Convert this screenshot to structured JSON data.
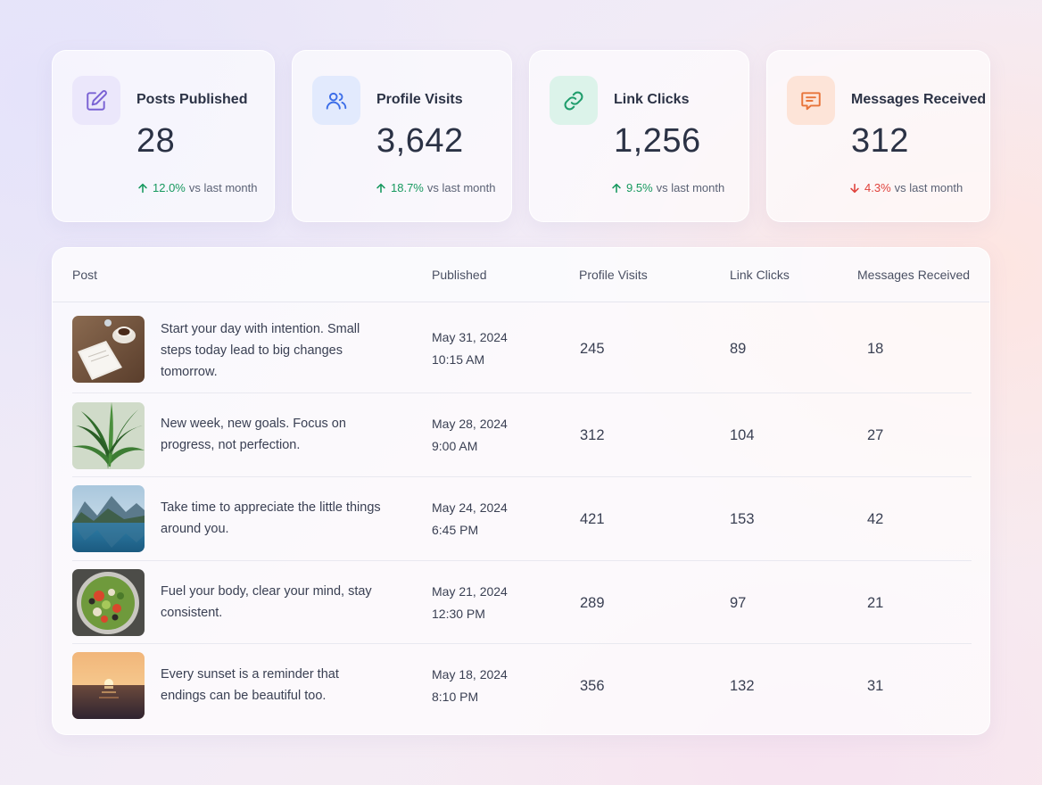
{
  "stats": [
    {
      "label": "Posts Published",
      "value": "28",
      "change": "12.0%",
      "direction": "up",
      "suffix": "vs last month",
      "icon": "edit-icon",
      "tile_color": "#ebe7fb",
      "icon_color": "#7a62d4"
    },
    {
      "label": "Profile Visits",
      "value": "3,642",
      "change": "18.7%",
      "direction": "up",
      "suffix": "vs last month",
      "icon": "users-icon",
      "tile_color": "#e2eafd",
      "icon_color": "#3c6ee8"
    },
    {
      "label": "Link Clicks",
      "value": "1,256",
      "change": "9.5%",
      "direction": "up",
      "suffix": "vs last month",
      "icon": "link-icon",
      "tile_color": "#dcf3ea",
      "icon_color": "#1f9d6c"
    },
    {
      "label": "Messages Received",
      "value": "312",
      "change": "4.3%",
      "direction": "down",
      "suffix": "vs last month",
      "icon": "message-icon",
      "tile_color": "#fde4d8",
      "icon_color": "#e8743a"
    }
  ],
  "table": {
    "headers": {
      "post": "Post",
      "published": "Published",
      "visits": "Profile Visits",
      "clicks": "Link Clicks",
      "messages": "Messages Received"
    },
    "rows": [
      {
        "text": "Start your day with intention. Small steps today lead to big changes tomorrow.",
        "date": "May 31, 2024",
        "time": "10:15 AM",
        "visits": "245",
        "clicks": "89",
        "messages": "18",
        "thumb": "coffee-notebook-image"
      },
      {
        "text": "New week, new goals. Focus on progress, not perfection.",
        "date": "May 28, 2024",
        "time": "9:00 AM",
        "visits": "312",
        "clicks": "104",
        "messages": "27",
        "thumb": "plant-leaves-image"
      },
      {
        "text": "Take time to appreciate the little things around you.",
        "date": "May 24, 2024",
        "time": "6:45 PM",
        "visits": "421",
        "clicks": "153",
        "messages": "42",
        "thumb": "mountain-lake-image"
      },
      {
        "text": "Fuel your body, clear your mind, stay consistent.",
        "date": "May 21, 2024",
        "time": "12:30 PM",
        "visits": "289",
        "clicks": "97",
        "messages": "21",
        "thumb": "salad-bowl-image"
      },
      {
        "text": "Every sunset is a reminder that endings can be beautiful too.",
        "date": "May 18, 2024",
        "time": "8:10 PM",
        "visits": "356",
        "clicks": "132",
        "messages": "31",
        "thumb": "ocean-sunset-image"
      }
    ]
  }
}
